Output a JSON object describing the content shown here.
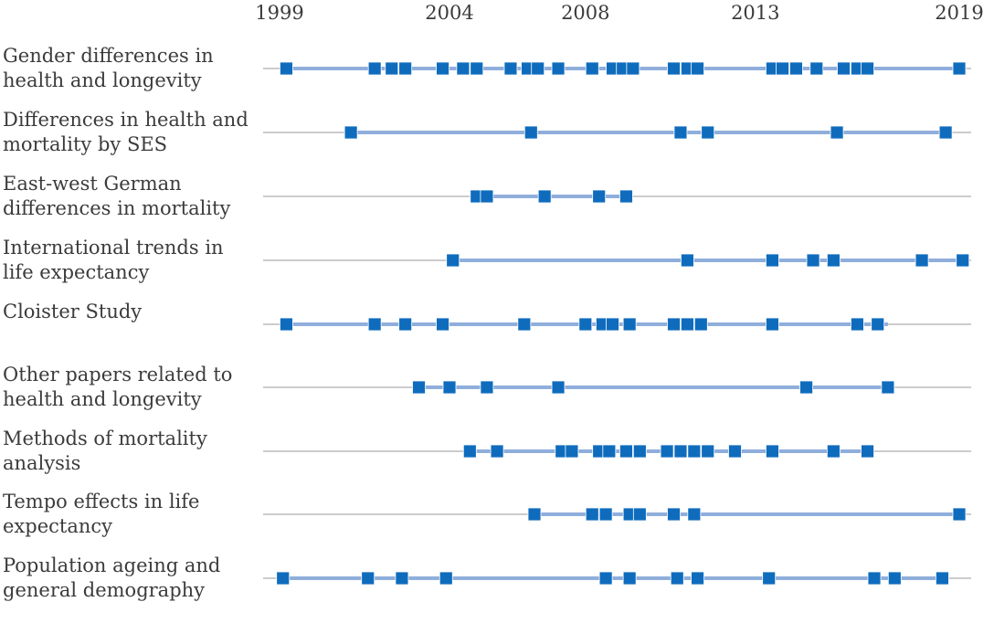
{
  "chart_data": {
    "type": "timeline",
    "title": "",
    "x_ticks": [
      1999,
      2004,
      2008,
      2013,
      2019
    ],
    "xlim": [
      1999,
      2019
    ],
    "colors": {
      "marker": "#0f6cbd",
      "active_line": "#8faedb",
      "base_line": "#9a9a9a",
      "text": "#3b3b3b"
    },
    "rows": [
      {
        "label": "Gender differences in health and longevity",
        "segments": [
          [
            1999.2,
            2019.0
          ]
        ],
        "markers": [
          1999.2,
          2001.8,
          2002.3,
          2002.7,
          2003.8,
          2004.4,
          2004.8,
          2005.8,
          2006.3,
          2006.6,
          2007.2,
          2008.2,
          2008.8,
          2009.1,
          2009.4,
          2010.6,
          2011.0,
          2011.3,
          2013.5,
          2013.8,
          2014.2,
          2014.8,
          2015.6,
          2016.0,
          2016.3,
          2019.0
        ]
      },
      {
        "label": "Differences in health and mortality by SES",
        "segments": [
          [
            2001.1,
            2018.6
          ]
        ],
        "markers": [
          2001.1,
          2006.4,
          2010.8,
          2011.6,
          2015.4,
          2018.6
        ]
      },
      {
        "label": "East-west German differences in mortality",
        "segments": [
          [
            2004.8,
            2009.2
          ]
        ],
        "markers": [
          2004.8,
          2005.1,
          2006.8,
          2008.4,
          2009.2
        ]
      },
      {
        "label": "International trends in life expectancy",
        "segments": [
          [
            2004.1,
            2019.1
          ]
        ],
        "markers": [
          2004.1,
          2011.0,
          2013.5,
          2014.7,
          2015.3,
          2017.9,
          2019.1
        ]
      },
      {
        "label": "Cloister Study",
        "segments": [
          [
            1999.2,
            2016.9
          ]
        ],
        "markers": [
          1999.2,
          2001.8,
          2002.7,
          2003.8,
          2006.2,
          2008.0,
          2008.5,
          2008.8,
          2009.3,
          2010.6,
          2011.0,
          2011.4,
          2013.5,
          2016.0,
          2016.6
        ]
      },
      {
        "label": "Other papers related to health and longevity",
        "segments": [
          [
            2003.1,
            2016.9
          ]
        ],
        "markers": [
          2003.1,
          2004.0,
          2005.1,
          2007.2,
          2014.5,
          2016.9
        ]
      },
      {
        "label": "Methods of mortality analysis",
        "segments": [
          [
            2004.6,
            2016.3
          ]
        ],
        "markers": [
          2004.6,
          2005.4,
          2007.3,
          2007.6,
          2008.4,
          2008.7,
          2009.2,
          2009.6,
          2010.4,
          2010.8,
          2011.2,
          2011.6,
          2012.4,
          2013.5,
          2015.3,
          2016.3
        ]
      },
      {
        "label": "Tempo effects in life expectancy",
        "segments": [
          [
            2006.5,
            2019.0
          ]
        ],
        "markers": [
          2006.5,
          2008.2,
          2008.6,
          2009.3,
          2009.6,
          2010.6,
          2011.2,
          2019.0
        ]
      },
      {
        "label": "Population ageing and general demography",
        "segments": [
          [
            1999.1,
            2018.5
          ]
        ],
        "markers": [
          1999.1,
          2001.6,
          2002.6,
          2003.9,
          2008.6,
          2009.3,
          2010.7,
          2011.3,
          2013.4,
          2016.5,
          2017.1,
          2018.5
        ]
      }
    ]
  }
}
